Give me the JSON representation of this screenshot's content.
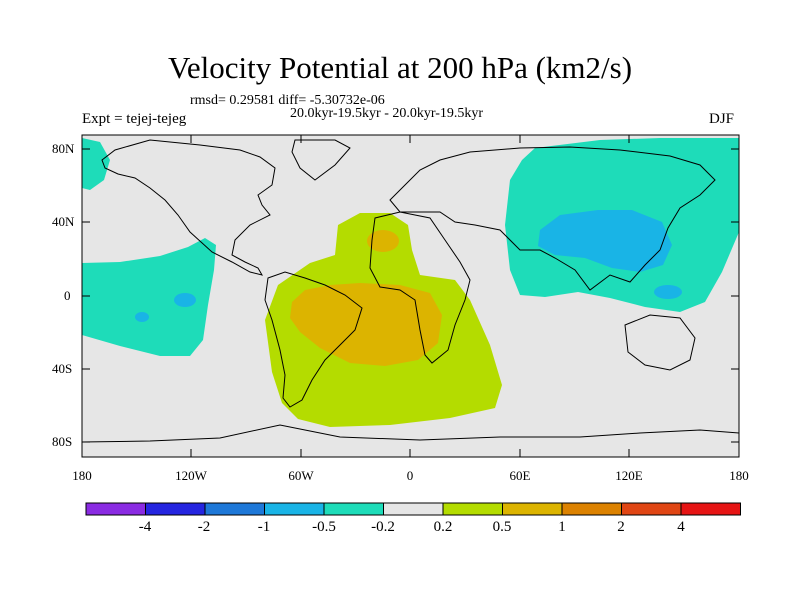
{
  "title": "Velocity Potential at 200 hPa (km2/s)",
  "stats": "rmsd= 0.29581 diff= -5.30732e-06",
  "subtitle": "20.0kyr-19.5kyr - 20.0kyr-19.5kyr",
  "experiment": "Expt = tejej-tejeg",
  "season": "DJF",
  "lat_labels": [
    "80N",
    "40N",
    "0",
    "40S",
    "80S"
  ],
  "lon_labels": [
    "180",
    "120W",
    "60W",
    "0",
    "60E",
    "120E",
    "180"
  ],
  "colorbar": {
    "colors": [
      "#8a2be2",
      "#2525e0",
      "#1e78d8",
      "#19b4e6",
      "#1edcb9",
      "#e6e6e6",
      "#b4dc00",
      "#dcb400",
      "#dc8200",
      "#e04614",
      "#e61414"
    ],
    "labels": [
      "-4",
      "-2",
      "-1",
      "-0.5",
      "-0.2",
      "0.2",
      "0.5",
      "1",
      "2",
      "4"
    ]
  },
  "map": {
    "background_color": "#e6e6e6",
    "region_colors": {
      "neg_weak": "#1edcb9",
      "neg_mid": "#19b4e6",
      "pos_weak": "#b4dc00",
      "pos_mid": "#dcb400",
      "pos_strong": "#dc8200"
    }
  }
}
